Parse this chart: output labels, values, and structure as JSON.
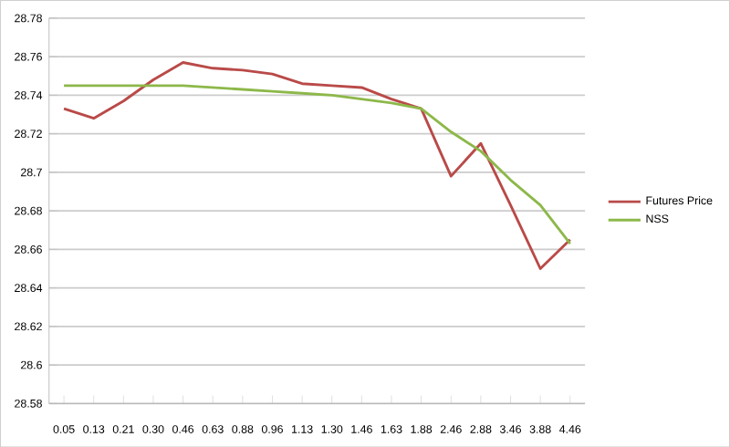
{
  "chart_data": {
    "type": "line",
    "categories": [
      "0.05",
      "0.13",
      "0.21",
      "0.30",
      "0.46",
      "0.63",
      "0.88",
      "0.96",
      "1.13",
      "1.30",
      "1.46",
      "1.63",
      "1.88",
      "2.46",
      "2.88",
      "3.46",
      "3.88",
      "4.46"
    ],
    "series": [
      {
        "name": "Futures Price",
        "color": "#b94a48",
        "values": [
          28.733,
          28.728,
          28.737,
          28.748,
          28.757,
          28.754,
          28.753,
          28.751,
          28.746,
          28.745,
          28.744,
          28.738,
          28.733,
          28.698,
          28.715,
          28.683,
          28.65,
          28.665
        ]
      },
      {
        "name": "NSS",
        "color": "#8db84a",
        "values": [
          28.745,
          28.745,
          28.745,
          28.745,
          28.745,
          28.744,
          28.743,
          28.742,
          28.741,
          28.74,
          28.738,
          28.736,
          28.733,
          28.721,
          28.711,
          28.696,
          28.683,
          28.663
        ]
      }
    ],
    "ylim": [
      28.58,
      28.78
    ],
    "yticks": [
      28.58,
      28.6,
      28.62,
      28.64,
      28.66,
      28.68,
      28.7,
      28.72,
      28.74,
      28.76,
      28.78
    ],
    "grid": "y",
    "legend": "right",
    "marker": "none",
    "line_style": "solid"
  }
}
